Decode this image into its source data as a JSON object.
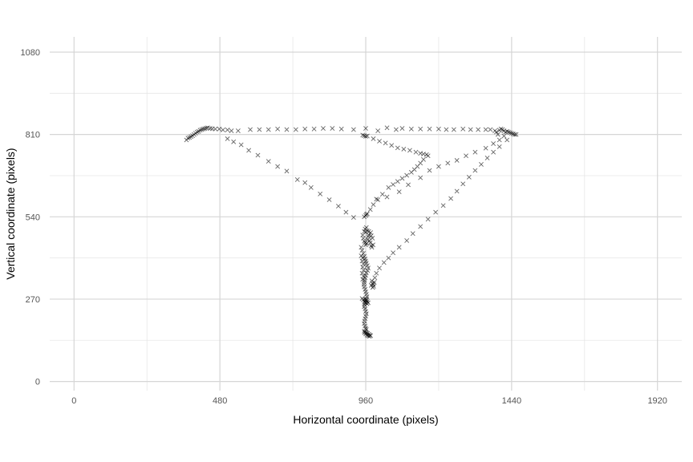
{
  "chart_data": {
    "type": "scatter",
    "title": "",
    "xlabel": "Horizontal coordinate (pixels)",
    "ylabel": "Vertical coordinate (pixels)",
    "xlim": [
      -80,
      2000
    ],
    "ylim": [
      -30,
      1130
    ],
    "x_ticks": [
      0,
      480,
      960,
      1440,
      1920
    ],
    "y_ticks": [
      0,
      270,
      540,
      810,
      1080
    ],
    "x_tick_labels": [
      "0",
      "480",
      "960",
      "1440",
      "1920"
    ],
    "y_tick_labels": [
      "0",
      "270",
      "540",
      "810",
      "1080"
    ],
    "grid": true,
    "marker": "x",
    "marker_color": "#000000",
    "points": [
      [
        370,
        792
      ],
      [
        375,
        798
      ],
      [
        380,
        800
      ],
      [
        385,
        803
      ],
      [
        390,
        806
      ],
      [
        395,
        810
      ],
      [
        400,
        814
      ],
      [
        405,
        818
      ],
      [
        410,
        820
      ],
      [
        415,
        824
      ],
      [
        420,
        826
      ],
      [
        425,
        828
      ],
      [
        430,
        829
      ],
      [
        435,
        831
      ],
      [
        440,
        832
      ],
      [
        448,
        830
      ],
      [
        455,
        829
      ],
      [
        465,
        828
      ],
      [
        478,
        828
      ],
      [
        490,
        825
      ],
      [
        505,
        825
      ],
      [
        518,
        822
      ],
      [
        540,
        822
      ],
      [
        580,
        826
      ],
      [
        610,
        826
      ],
      [
        640,
        826
      ],
      [
        670,
        828
      ],
      [
        700,
        826
      ],
      [
        730,
        826
      ],
      [
        760,
        828
      ],
      [
        790,
        828
      ],
      [
        820,
        830
      ],
      [
        850,
        830
      ],
      [
        880,
        828
      ],
      [
        920,
        826
      ],
      [
        960,
        830
      ],
      [
        1000,
        822
      ],
      [
        1030,
        832
      ],
      [
        1060,
        826
      ],
      [
        1080,
        830
      ],
      [
        1110,
        828
      ],
      [
        1140,
        828
      ],
      [
        1170,
        828
      ],
      [
        1200,
        828
      ],
      [
        1225,
        826
      ],
      [
        1250,
        826
      ],
      [
        1280,
        828
      ],
      [
        1305,
        826
      ],
      [
        1330,
        826
      ],
      [
        1355,
        826
      ],
      [
        1370,
        826
      ],
      [
        1385,
        822
      ],
      [
        1390,
        818
      ],
      [
        1395,
        810
      ],
      [
        1400,
        824
      ],
      [
        1405,
        828
      ],
      [
        1410,
        826
      ],
      [
        1415,
        822
      ],
      [
        1420,
        818
      ],
      [
        1425,
        820
      ],
      [
        1430,
        818
      ],
      [
        1435,
        816
      ],
      [
        1440,
        814
      ],
      [
        1445,
        812
      ],
      [
        1450,
        810
      ],
      [
        1455,
        810
      ],
      [
        505,
        796
      ],
      [
        525,
        786
      ],
      [
        550,
        776
      ],
      [
        575,
        758
      ],
      [
        605,
        742
      ],
      [
        640,
        722
      ],
      [
        670,
        705
      ],
      [
        700,
        690
      ],
      [
        735,
        662
      ],
      [
        760,
        652
      ],
      [
        780,
        636
      ],
      [
        810,
        615
      ],
      [
        840,
        596
      ],
      [
        870,
        575
      ],
      [
        895,
        555
      ],
      [
        920,
        538
      ],
      [
        950,
        808
      ],
      [
        955,
        806
      ],
      [
        960,
        804
      ],
      [
        965,
        805
      ],
      [
        985,
        796
      ],
      [
        1005,
        788
      ],
      [
        1025,
        782
      ],
      [
        1045,
        774
      ],
      [
        1065,
        766
      ],
      [
        1085,
        762
      ],
      [
        1105,
        758
      ],
      [
        1125,
        752
      ],
      [
        1140,
        748
      ],
      [
        1150,
        746
      ],
      [
        1160,
        744
      ],
      [
        1165,
        740
      ],
      [
        1150,
        728
      ],
      [
        1140,
        716
      ],
      [
        1130,
        705
      ],
      [
        1120,
        695
      ],
      [
        1110,
        686
      ],
      [
        1095,
        676
      ],
      [
        1080,
        666
      ],
      [
        1065,
        656
      ],
      [
        1050,
        646
      ],
      [
        1035,
        636
      ],
      [
        1015,
        614
      ],
      [
        995,
        598
      ],
      [
        985,
        580
      ],
      [
        975,
        564
      ],
      [
        965,
        550
      ],
      [
        962,
        548
      ],
      [
        960,
        544
      ],
      [
        955,
        540
      ],
      [
        1000,
        596
      ],
      [
        1030,
        605
      ],
      [
        1070,
        622
      ],
      [
        1100,
        645
      ],
      [
        1140,
        668
      ],
      [
        1170,
        692
      ],
      [
        1200,
        705
      ],
      [
        1230,
        716
      ],
      [
        1260,
        725
      ],
      [
        1290,
        740
      ],
      [
        1320,
        752
      ],
      [
        1355,
        765
      ],
      [
        1380,
        780
      ],
      [
        1400,
        792
      ],
      [
        1415,
        805
      ],
      [
        1425,
        792
      ],
      [
        1400,
        770
      ],
      [
        1380,
        752
      ],
      [
        1360,
        733
      ],
      [
        1340,
        712
      ],
      [
        1320,
        692
      ],
      [
        1300,
        670
      ],
      [
        1280,
        648
      ],
      [
        1260,
        624
      ],
      [
        1240,
        600
      ],
      [
        1215,
        577
      ],
      [
        1190,
        555
      ],
      [
        1165,
        532
      ],
      [
        1140,
        508
      ],
      [
        1115,
        485
      ],
      [
        1095,
        462
      ],
      [
        1070,
        440
      ],
      [
        1050,
        422
      ],
      [
        1035,
        405
      ],
      [
        1020,
        390
      ],
      [
        1005,
        372
      ],
      [
        995,
        355
      ],
      [
        990,
        340
      ],
      [
        988,
        325
      ],
      [
        985,
        318
      ],
      [
        980,
        330
      ],
      [
        982,
        322
      ],
      [
        986,
        312
      ],
      [
        983,
        308
      ],
      [
        978,
        315
      ],
      [
        950,
        480
      ],
      [
        952,
        470
      ],
      [
        955,
        460
      ],
      [
        958,
        455
      ],
      [
        960,
        448
      ],
      [
        963,
        452
      ],
      [
        966,
        465
      ],
      [
        968,
        475
      ],
      [
        970,
        480
      ],
      [
        972,
        462
      ],
      [
        975,
        455
      ],
      [
        978,
        445
      ],
      [
        980,
        440
      ],
      [
        984,
        448
      ],
      [
        982,
        470
      ],
      [
        978,
        478
      ],
      [
        976,
        488
      ],
      [
        970,
        492
      ],
      [
        965,
        494
      ],
      [
        960,
        490
      ],
      [
        955,
        492
      ],
      [
        958,
        500
      ],
      [
        962,
        505
      ],
      [
        945,
        440
      ],
      [
        948,
        430
      ],
      [
        952,
        420
      ],
      [
        955,
        410
      ],
      [
        958,
        402
      ],
      [
        960,
        395
      ],
      [
        962,
        388
      ],
      [
        965,
        380
      ],
      [
        968,
        372
      ],
      [
        966,
        364
      ],
      [
        962,
        356
      ],
      [
        960,
        348
      ],
      [
        958,
        340
      ],
      [
        956,
        332
      ],
      [
        955,
        325
      ],
      [
        954,
        318
      ],
      [
        955,
        310
      ],
      [
        958,
        302
      ],
      [
        960,
        294
      ],
      [
        962,
        286
      ],
      [
        964,
        278
      ],
      [
        962,
        270
      ],
      [
        960,
        264
      ],
      [
        958,
        258
      ],
      [
        956,
        252
      ],
      [
        955,
        245
      ],
      [
        958,
        238
      ],
      [
        960,
        230
      ],
      [
        962,
        222
      ],
      [
        960,
        214
      ],
      [
        958,
        206
      ],
      [
        956,
        198
      ],
      [
        955,
        190
      ],
      [
        958,
        182
      ],
      [
        960,
        175
      ],
      [
        962,
        170
      ],
      [
        948,
        272
      ],
      [
        952,
        268
      ],
      [
        956,
        262
      ],
      [
        960,
        258
      ],
      [
        964,
        255
      ],
      [
        968,
        258
      ],
      [
        965,
        262
      ],
      [
        962,
        266
      ],
      [
        958,
        270
      ],
      [
        955,
        165
      ],
      [
        958,
        162
      ],
      [
        962,
        160
      ],
      [
        966,
        158
      ],
      [
        970,
        155
      ],
      [
        974,
        152
      ],
      [
        976,
        150
      ],
      [
        972,
        148
      ],
      [
        968,
        150
      ],
      [
        964,
        152
      ],
      [
        960,
        156
      ],
      [
        956,
        160
      ],
      [
        945,
        412
      ],
      [
        950,
        405
      ],
      [
        948,
        395
      ],
      [
        952,
        385
      ],
      [
        950,
        375
      ],
      [
        953,
        365
      ],
      [
        948,
        355
      ],
      [
        952,
        345
      ],
      [
        950,
        335
      ]
    ]
  }
}
